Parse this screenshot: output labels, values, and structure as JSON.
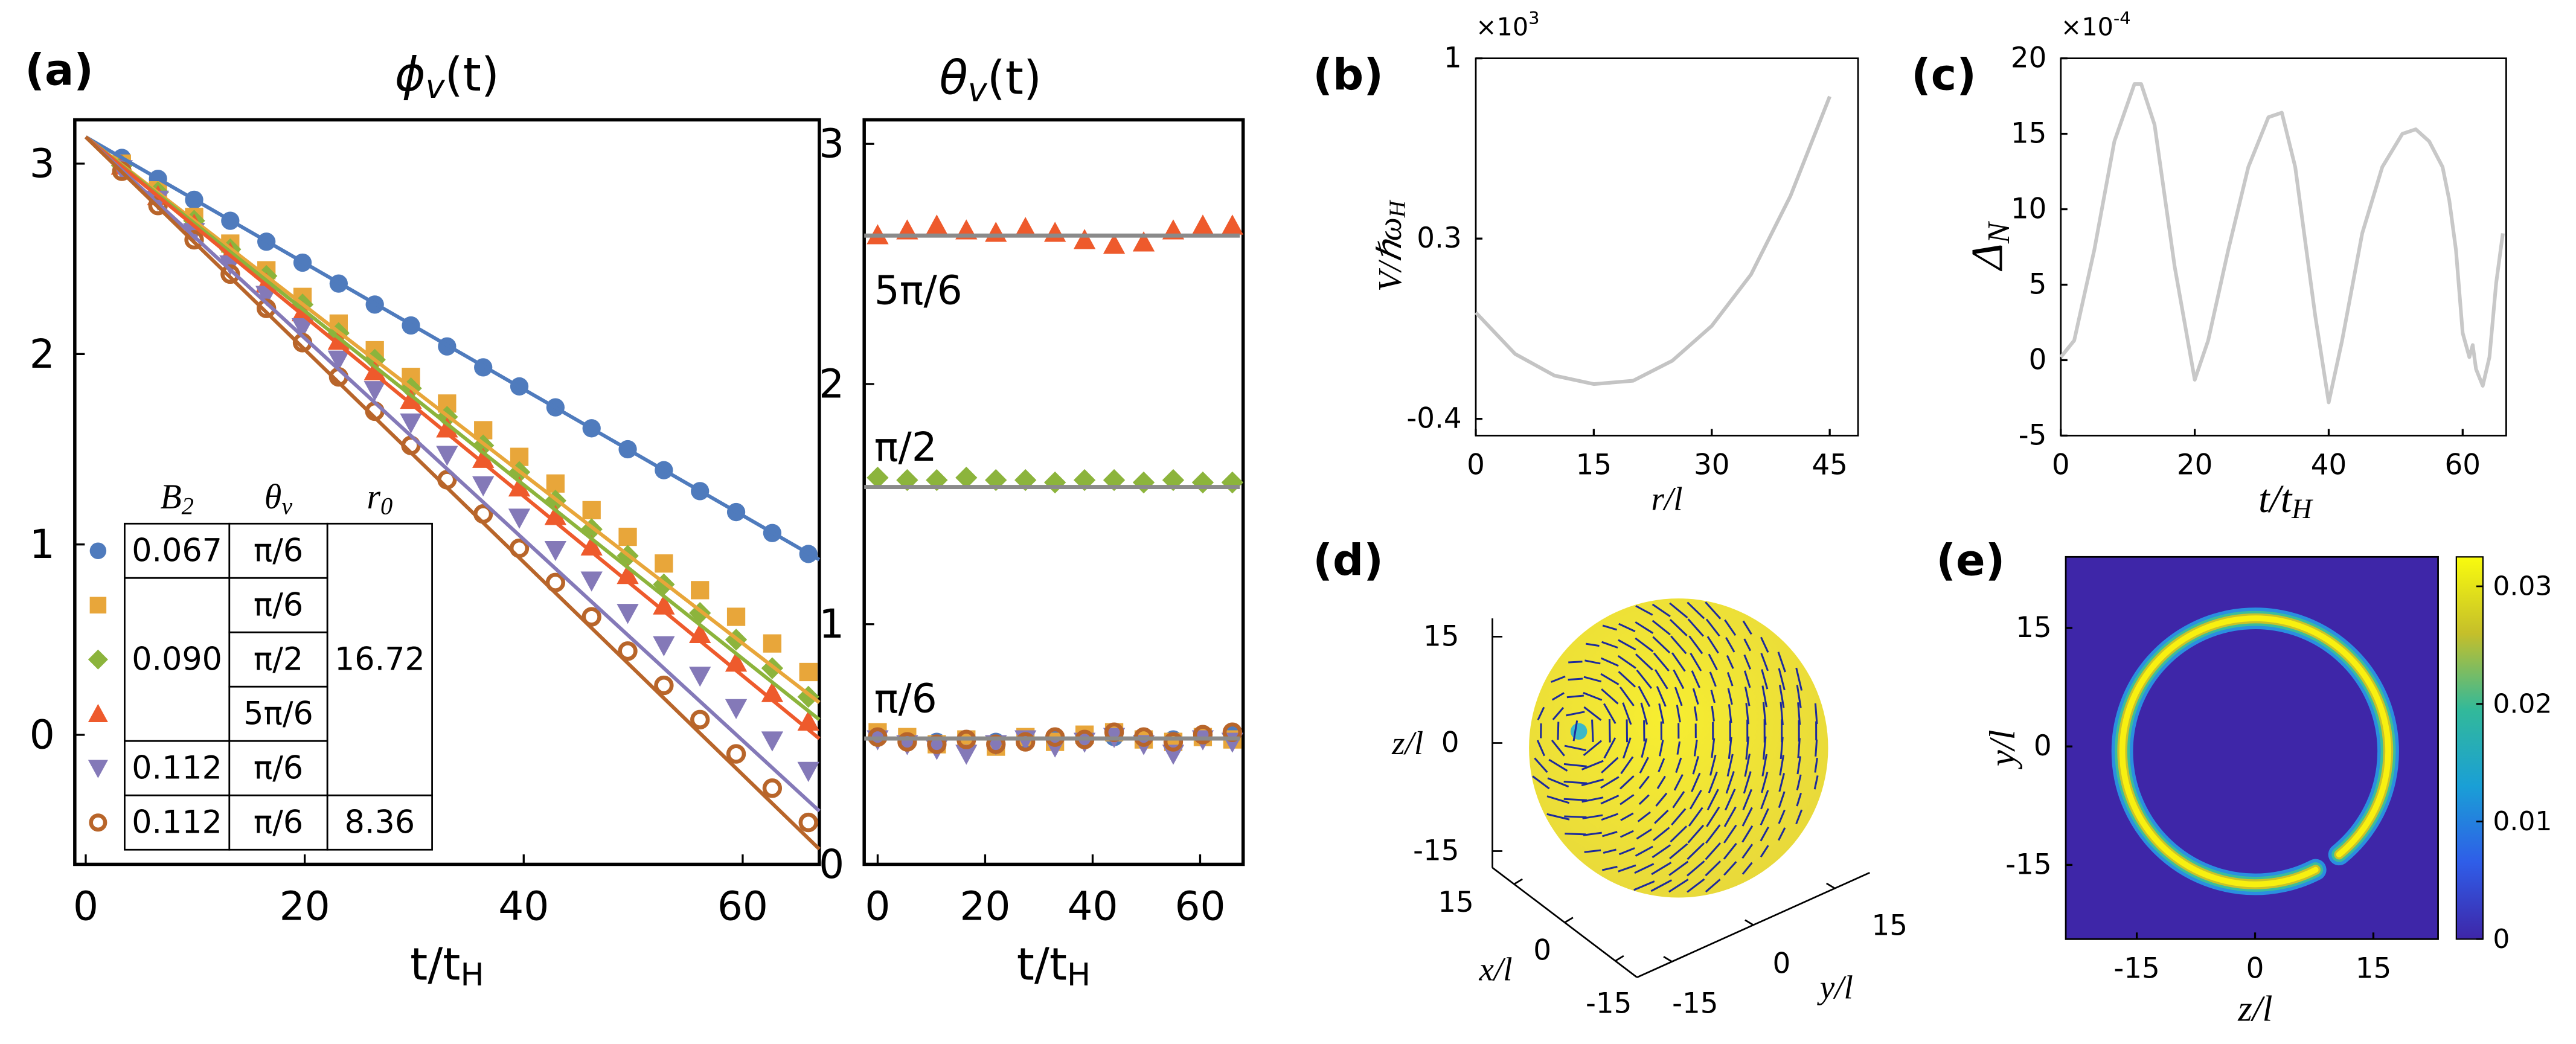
{
  "chart_data": [
    {
      "type": "scatter",
      "panel": "(a)",
      "title": {
        "base": "ϕ",
        "sub": "v",
        "rest": "(t)"
      },
      "xlabel": {
        "base": "t/t",
        "sub": "H"
      },
      "xlim": [
        -1,
        67
      ],
      "ylim": [
        -0.68,
        3.23
      ],
      "xticks": [
        0,
        20,
        40,
        60
      ],
      "yticks": [
        0,
        1,
        2,
        3
      ],
      "x": [
        3.3,
        6.6,
        9.9,
        13.2,
        16.5,
        19.8,
        23.1,
        26.4,
        29.7,
        33,
        36.3,
        39.6,
        42.9,
        46.2,
        49.5,
        52.8,
        56.1,
        59.4,
        62.7,
        66
      ],
      "fit_x": [
        0,
        67
      ],
      "series": [
        {
          "color": "#4f7bbd",
          "marker": "circle",
          "values": [
            3.03,
            2.92,
            2.81,
            2.7,
            2.59,
            2.48,
            2.37,
            2.26,
            2.15,
            2.04,
            1.93,
            1.83,
            1.72,
            1.61,
            1.5,
            1.39,
            1.28,
            1.17,
            1.06,
            0.95
          ],
          "fit": [
            3.14,
            0.92
          ]
        },
        {
          "color": "#e8a63a",
          "marker": "square",
          "values": [
            3.0,
            2.86,
            2.72,
            2.58,
            2.44,
            2.3,
            2.16,
            2.02,
            1.88,
            1.74,
            1.6,
            1.46,
            1.32,
            1.18,
            1.04,
            0.9,
            0.76,
            0.62,
            0.48,
            0.33
          ],
          "fit": [
            3.14,
            0.17
          ]
        },
        {
          "color": "#8cb43c",
          "marker": "diamond",
          "values": [
            2.99,
            2.85,
            2.7,
            2.55,
            2.41,
            2.26,
            2.11,
            1.97,
            1.82,
            1.67,
            1.52,
            1.38,
            1.23,
            1.08,
            0.94,
            0.79,
            0.64,
            0.5,
            0.35,
            0.2
          ],
          "fit": [
            3.14,
            0.08
          ]
        },
        {
          "color": "#ee5a2c",
          "marker": "triangle",
          "values": [
            2.99,
            2.83,
            2.68,
            2.53,
            2.37,
            2.22,
            2.07,
            1.91,
            1.76,
            1.61,
            1.45,
            1.3,
            1.15,
            0.99,
            0.84,
            0.68,
            0.53,
            0.38,
            0.22,
            0.07
          ],
          "fit": [
            3.14,
            -0.02
          ]
        },
        {
          "color": "#8479b8",
          "marker": "triangle-down",
          "values": [
            2.97,
            2.81,
            2.64,
            2.47,
            2.31,
            2.14,
            1.97,
            1.81,
            1.64,
            1.47,
            1.31,
            1.14,
            0.97,
            0.81,
            0.64,
            0.47,
            0.31,
            0.14,
            -0.03,
            -0.19
          ],
          "fit": [
            3.14,
            -0.4
          ]
        },
        {
          "color": "#b8652a",
          "marker": "ring",
          "values": [
            2.96,
            2.78,
            2.6,
            2.42,
            2.24,
            2.06,
            1.88,
            1.7,
            1.52,
            1.34,
            1.16,
            0.98,
            0.8,
            0.62,
            0.44,
            0.26,
            0.08,
            -0.1,
            -0.28,
            -0.46
          ],
          "fit": [
            3.14,
            -0.6
          ]
        }
      ],
      "table": {
        "columns": [
          {
            "header": {
              "base": "B",
              "sub": "2"
            },
            "cells": [
              {
                "text": "0.067",
                "rowspan": 1
              },
              {
                "text": "0.090",
                "rowspan": 3
              },
              {
                "text": "0.112",
                "rowspan": 1
              },
              {
                "text": "0.112",
                "rowspan": 1
              }
            ]
          },
          {
            "header": {
              "base": "θ",
              "sub": "v"
            },
            "cells": [
              {
                "text": "π/6",
                "rowspan": 1
              },
              {
                "text": "π/6",
                "rowspan": 1
              },
              {
                "text": "π/2",
                "rowspan": 1
              },
              {
                "text": "5π/6",
                "rowspan": 1
              },
              {
                "text": "π/6",
                "rowspan": 1
              },
              {
                "text": "π/6",
                "rowspan": 1
              }
            ]
          },
          {
            "header": {
              "base": "r",
              "sub": "0"
            },
            "cells": [
              {
                "text": "16.72",
                "rowspan": 5
              },
              {
                "text": "8.36",
                "rowspan": 1
              }
            ]
          }
        ]
      }
    },
    {
      "type": "scatter",
      "title": {
        "base": "θ",
        "sub": "v",
        "rest": "(t)"
      },
      "xlabel": {
        "base": "t/t",
        "sub": "H"
      },
      "xlim": [
        -2.5,
        68
      ],
      "ylim": [
        0,
        3.1
      ],
      "xticks": [
        0,
        20,
        40,
        60
      ],
      "yticks": [
        0,
        1,
        2,
        3
      ],
      "x": [
        0,
        5.5,
        11,
        16.5,
        22,
        27.5,
        33,
        38.5,
        44,
        49.5,
        55,
        60.5,
        66
      ],
      "reference_lines": [
        {
          "value": 2.618,
          "label": "5π/6"
        },
        {
          "value": 1.571,
          "label": "π/2"
        },
        {
          "value": 0.524,
          "label": "π/6"
        }
      ],
      "series": [
        {
          "color": "#ee5a2c",
          "marker": "triangle",
          "values": [
            2.62,
            2.64,
            2.66,
            2.64,
            2.63,
            2.65,
            2.63,
            2.6,
            2.58,
            2.59,
            2.64,
            2.66,
            2.66
          ]
        },
        {
          "color": "#8cb43c",
          "marker": "diamond",
          "values": [
            1.61,
            1.6,
            1.6,
            1.61,
            1.6,
            1.6,
            1.59,
            1.6,
            1.6,
            1.59,
            1.6,
            1.59,
            1.59
          ]
        },
        {
          "color": "#4f7bbd",
          "marker": "circle",
          "values": [
            0.54,
            0.52,
            0.51,
            0.52,
            0.51,
            0.52,
            0.53,
            0.52,
            0.53,
            0.52,
            0.52,
            0.53,
            0.54
          ]
        },
        {
          "color": "#e8a63a",
          "marker": "square",
          "values": [
            0.55,
            0.53,
            0.5,
            0.52,
            0.49,
            0.53,
            0.51,
            0.54,
            0.55,
            0.52,
            0.51,
            0.53,
            0.52
          ]
        },
        {
          "color": "#8479b8",
          "marker": "triangle-down",
          "values": [
            0.52,
            0.5,
            0.48,
            0.46,
            0.5,
            0.52,
            0.49,
            0.51,
            0.53,
            0.5,
            0.46,
            0.52,
            0.51
          ]
        },
        {
          "color": "#b8652a",
          "marker": "ring",
          "values": [
            0.53,
            0.51,
            0.5,
            0.52,
            0.5,
            0.51,
            0.53,
            0.52,
            0.55,
            0.53,
            0.51,
            0.54,
            0.55
          ]
        }
      ]
    },
    {
      "type": "line",
      "panel": "(b)",
      "exponent": {
        "base": "×10",
        "sup": "3"
      },
      "ylabel": {
        "base": "V/ℏω",
        "sub": "H"
      },
      "xlabel": "r/l",
      "xlim": [
        0,
        48.6
      ],
      "ylim": [
        -0.465,
        1
      ],
      "xticks": [
        0,
        15,
        30,
        45
      ],
      "yticks": [
        -0.4,
        0.3,
        1
      ],
      "color": "#c4c4c4",
      "x": [
        0,
        5,
        10,
        15,
        20,
        25,
        30,
        35,
        40,
        45
      ],
      "values": [
        0.013,
        -0.148,
        -0.232,
        -0.265,
        -0.252,
        -0.174,
        -0.039,
        0.161,
        0.465,
        0.852
      ]
    },
    {
      "type": "line",
      "panel": "(c)",
      "exponent": {
        "base": "×10",
        "sup": "-4"
      },
      "ylabel": {
        "base": "Δ",
        "sub": "N"
      },
      "xlabel": {
        "base": "t/t",
        "sub": "H"
      },
      "xlim": [
        0,
        66.5
      ],
      "ylim": [
        -5,
        20
      ],
      "xticks": [
        0,
        20,
        40,
        60
      ],
      "yticks": [
        -5,
        0,
        5,
        10,
        15,
        20
      ],
      "color": "#c8c8c8",
      "x": [
        0,
        2,
        5,
        8,
        11,
        12,
        14,
        17,
        20,
        22,
        25,
        28,
        31,
        33,
        35,
        38,
        40,
        42,
        45,
        48,
        51,
        53,
        55,
        57,
        58,
        59,
        60,
        61,
        61.5,
        62,
        63,
        64,
        65,
        66
      ],
      "values": [
        0.2,
        1.3,
        7.3,
        14.5,
        18.3,
        18.3,
        15.6,
        6.2,
        -1.3,
        1.3,
        7.3,
        12.8,
        16.1,
        16.4,
        12.8,
        2.9,
        -2.8,
        1.3,
        8.4,
        12.8,
        15,
        15.3,
        14.5,
        12.8,
        10.6,
        7.3,
        1.8,
        0.2,
        1,
        -0.6,
        -1.7,
        0.2,
        5.1,
        8.4
      ]
    },
    {
      "type": "surface",
      "panel": "(d)",
      "zlabel": "z/l",
      "xlabel": "x/l",
      "ylabel": "y/l",
      "zticks": [
        15,
        0,
        -15
      ],
      "xticks": [
        15,
        0,
        -15
      ],
      "yticks": [
        15,
        0,
        -15
      ]
    },
    {
      "type": "heatmap",
      "panel": "(e)",
      "xlabel": "z/l",
      "ylabel": "y/l",
      "xlim": [
        -24,
        23.2
      ],
      "ylim": [
        -24.4,
        24
      ],
      "xticks": [
        -15,
        0,
        15
      ],
      "yticks": [
        15,
        0,
        -15
      ],
      "colorbar": {
        "lim": [
          0,
          0.0325
        ],
        "ticks": [
          0,
          0.01,
          0.02,
          0.03
        ]
      }
    }
  ]
}
